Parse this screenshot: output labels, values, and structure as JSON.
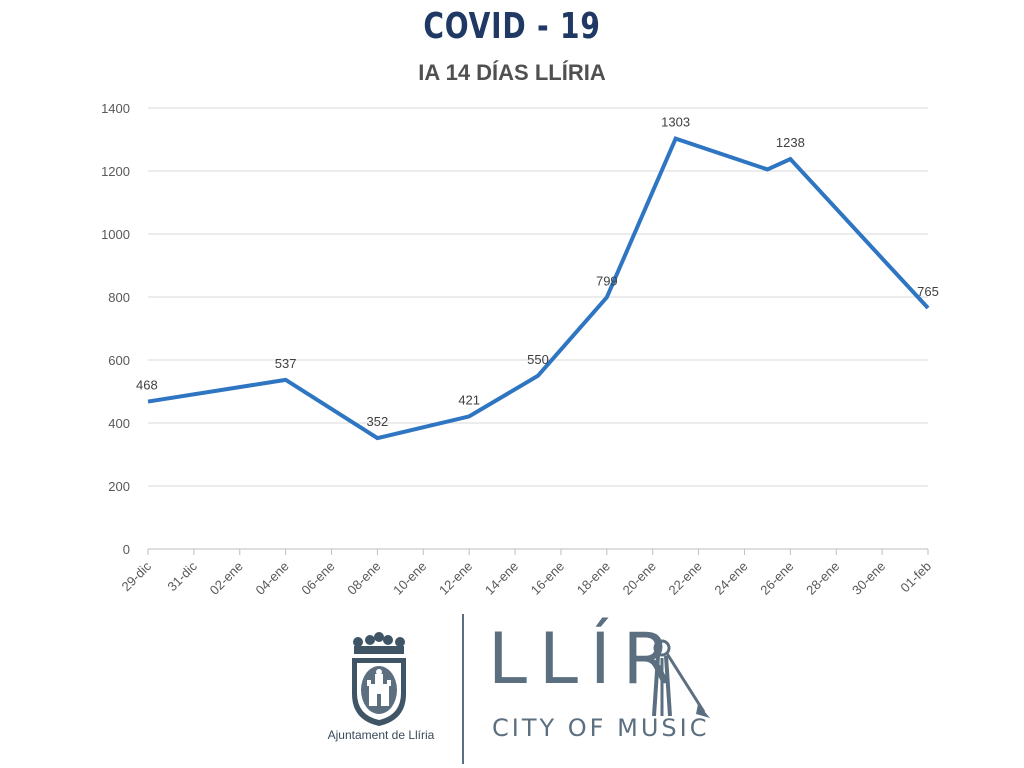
{
  "title": "COVID - 19",
  "subtitle": "IA 14 DÍAS LLÍRIA",
  "chart_data": {
    "type": "line",
    "title": "COVID - 19",
    "subtitle": "IA 14 DÍAS LLÍRIA",
    "xlabel": "",
    "ylabel": "",
    "ylim": [
      0,
      1400
    ],
    "yticks": [
      0,
      200,
      400,
      600,
      800,
      1000,
      1200,
      1400
    ],
    "grid": true,
    "categories": [
      "29-dic",
      "31-dic",
      "02-ene",
      "04-ene",
      "06-ene",
      "08-ene",
      "10-ene",
      "12-ene",
      "14-ene",
      "16-ene",
      "18-ene",
      "20-ene",
      "22-ene",
      "24-ene",
      "26-ene",
      "28-ene",
      "30-ene",
      "01-feb"
    ],
    "points": [
      {
        "x": "29-dic",
        "y": 468,
        "label": "468"
      },
      {
        "x": "04-ene",
        "y": 537,
        "label": "537"
      },
      {
        "x": "08-ene",
        "y": 352,
        "label": "352"
      },
      {
        "x": "12-ene",
        "y": 421,
        "label": "421"
      },
      {
        "x": "15-ene",
        "y": 550,
        "label": "550"
      },
      {
        "x": "18-ene",
        "y": 799,
        "label": "799"
      },
      {
        "x": "21-ene",
        "y": 1303,
        "label": "1303"
      },
      {
        "x": "25-ene",
        "y": 1205,
        "label": ""
      },
      {
        "x": "26-ene",
        "y": 1238,
        "label": "1238"
      },
      {
        "x": "01-feb",
        "y": 765,
        "label": "765"
      }
    ],
    "line_color": "#2e75c2"
  },
  "footer": {
    "ajuntament_label": "Ajuntament de Llíria",
    "brand_word": "LLÍR",
    "brand_tagline": "CITY OF MUSIC",
    "crest_icon": "coat-of-arms-icon",
    "trumpeter_icon": "trumpeter-icon",
    "brand_color": "#5b6f80"
  }
}
